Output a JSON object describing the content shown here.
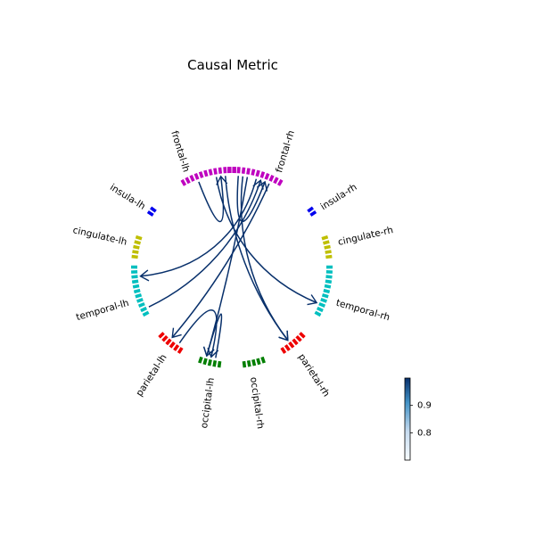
{
  "title": "Causal Metric",
  "nodes": [
    {
      "label": "frontal-lh",
      "color": "#bf00bf"
    },
    {
      "label": "frontal-rh",
      "color": "#bf00bf"
    },
    {
      "label": "insula-lh",
      "color": "#0000ee"
    },
    {
      "label": "insula-rh",
      "color": "#0000ee"
    },
    {
      "label": "cingulate-lh",
      "color": "#bfbf00"
    },
    {
      "label": "cingulate-rh",
      "color": "#bfbf00"
    },
    {
      "label": "temporal-lh",
      "color": "#00bfbf"
    },
    {
      "label": "temporal-rh",
      "color": "#00bfbf"
    },
    {
      "label": "parietal-lh",
      "color": "#ee0000"
    },
    {
      "label": "parietal-rh",
      "color": "#ee0000"
    },
    {
      "label": "occipital-lh",
      "color": "#007f00"
    },
    {
      "label": "occipital-rh",
      "color": "#007f00"
    }
  ],
  "edge_color": "#08306b",
  "colorbar": {
    "ticks": [
      {
        "label": "0.9",
        "value": 0.9
      },
      {
        "label": "0.8",
        "value": 0.8
      }
    ],
    "range": [
      0.7,
      1.0
    ]
  }
}
